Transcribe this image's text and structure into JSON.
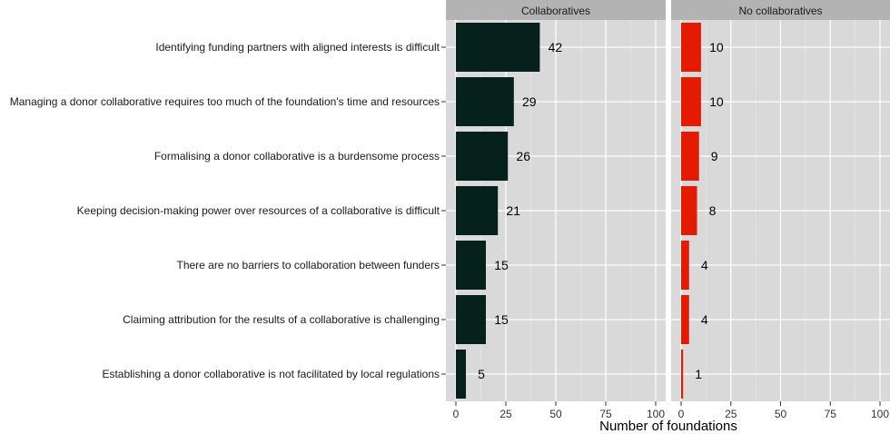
{
  "chart_data": {
    "type": "bar",
    "orientation": "horizontal",
    "xlabel": "Number of foundations",
    "xlim": [
      0,
      100
    ],
    "xticks": [
      0,
      25,
      50,
      75,
      100
    ],
    "grid": true,
    "categories": [
      "Identifying funding partners with aligned interests is difficult",
      "Managing a donor collaborative requires too much of the foundation's time and resources",
      "Formalising a donor collaborative is a burdensome process",
      "Keeping decision-making power over resources of a collaborative is difficult",
      "There are no barriers to collaboration between funders",
      "Claiming attribution for the results of a collaborative is challenging",
      "Establishing a donor collaborative is not facilitated by local regulations"
    ],
    "panels": [
      {
        "name": "Collaboratives",
        "color": "#06201b",
        "values": [
          42,
          29,
          26,
          21,
          15,
          15,
          5
        ]
      },
      {
        "name": "No collaboratives",
        "color": "#e41a03",
        "values": [
          10,
          10,
          9,
          8,
          4,
          4,
          1
        ]
      }
    ]
  },
  "colors": {
    "panel_background": "#d9d9d9",
    "strip_background": "#b3b3b3",
    "grid_major": "#ffffff",
    "grid_minor": "#e9e9e9"
  }
}
